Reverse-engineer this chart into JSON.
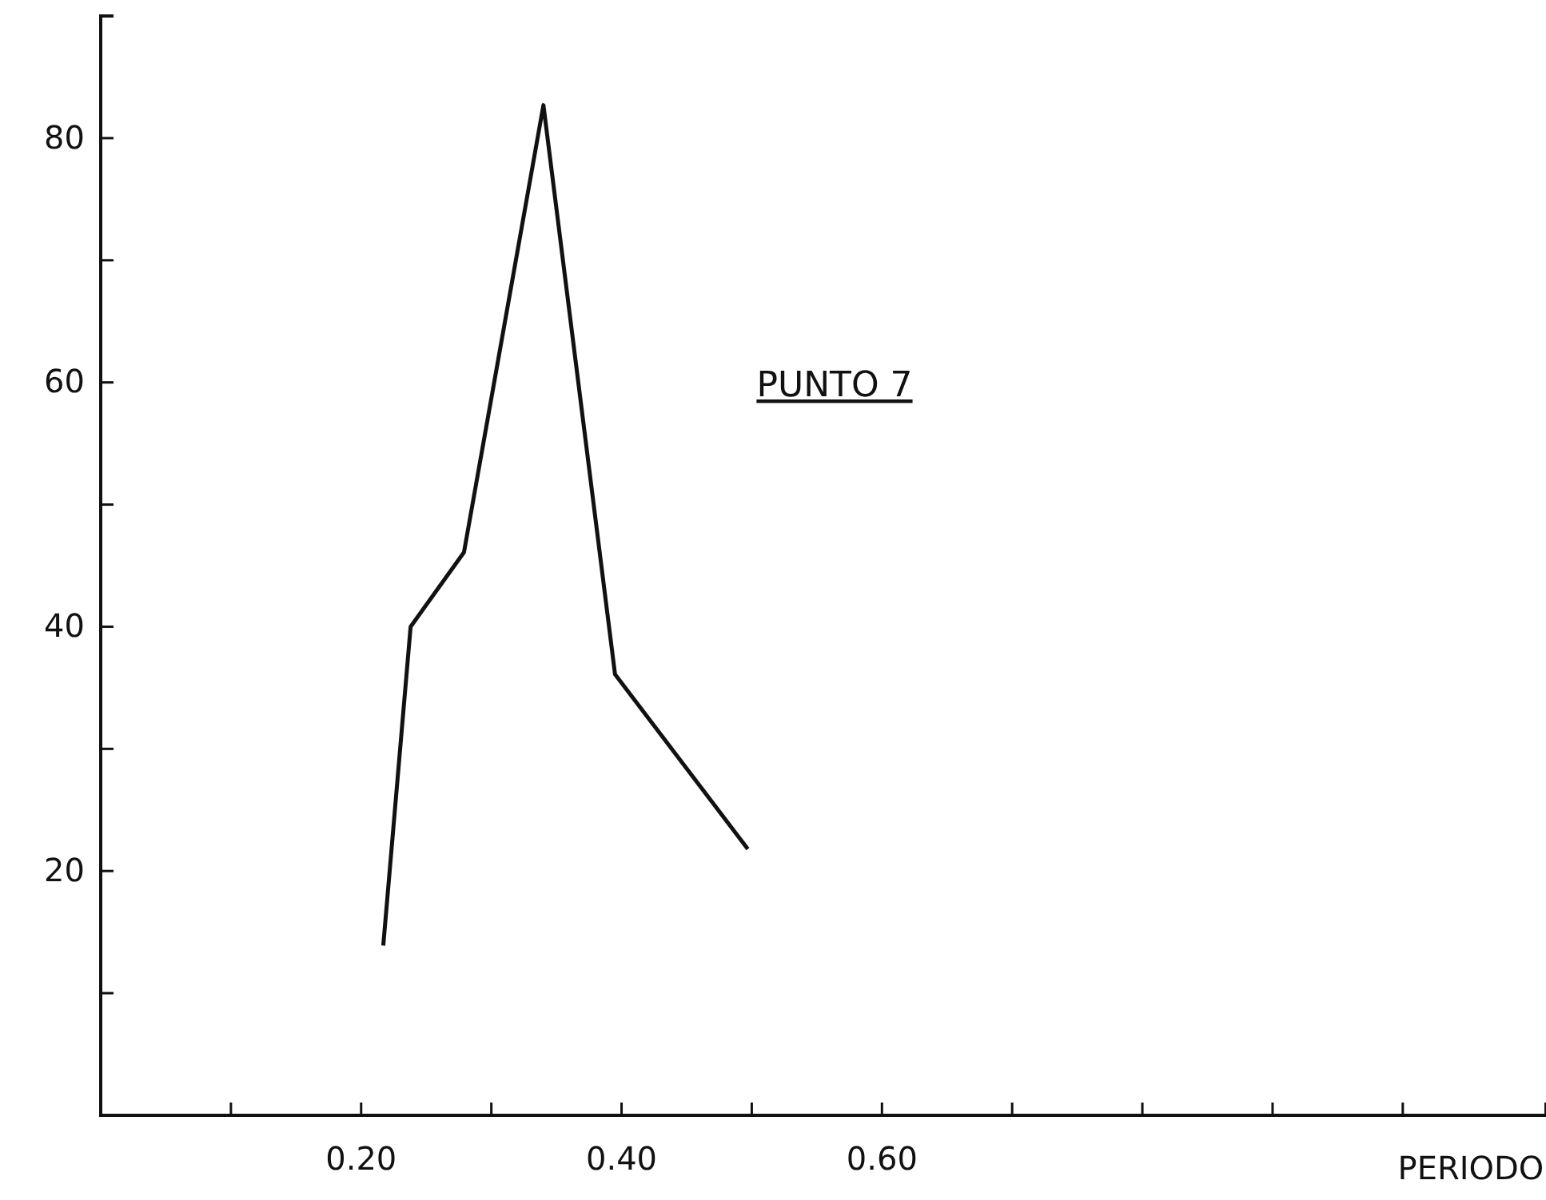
{
  "chart_data": {
    "type": "line",
    "xlabel": "PERIODO",
    "annotations": [
      "PUNTO 7"
    ],
    "x": [
      0.217,
      0.238,
      0.279,
      0.34,
      0.395,
      0.497
    ],
    "series": [
      {
        "color": "#111111",
        "values": [
          13.9,
          40,
          46.1,
          82.7,
          36.1,
          21.8
        ]
      }
    ],
    "xlim": [
      0,
      1.11
    ],
    "ylim": [
      0,
      90
    ],
    "xticks": [
      {
        "value": 0.1,
        "label": null
      },
      {
        "value": 0.2,
        "label": "0.20"
      },
      {
        "value": 0.3,
        "label": null
      },
      {
        "value": 0.4,
        "label": "0.40"
      },
      {
        "value": 0.5,
        "label": null
      },
      {
        "value": 0.6,
        "label": "0.60"
      },
      {
        "value": 0.7,
        "label": null
      },
      {
        "value": 0.8,
        "label": null
      },
      {
        "value": 0.9,
        "label": null
      },
      {
        "value": 1.0,
        "label": null
      }
    ],
    "yticks": [
      {
        "value": 10,
        "label": null
      },
      20,
      {
        "value": 30,
        "label": null
      },
      40,
      {
        "value": 50,
        "label": null
      },
      60,
      {
        "value": 70,
        "label": null
      },
      80
    ],
    "grid": false,
    "marker": "none",
    "line_style": "solid"
  }
}
